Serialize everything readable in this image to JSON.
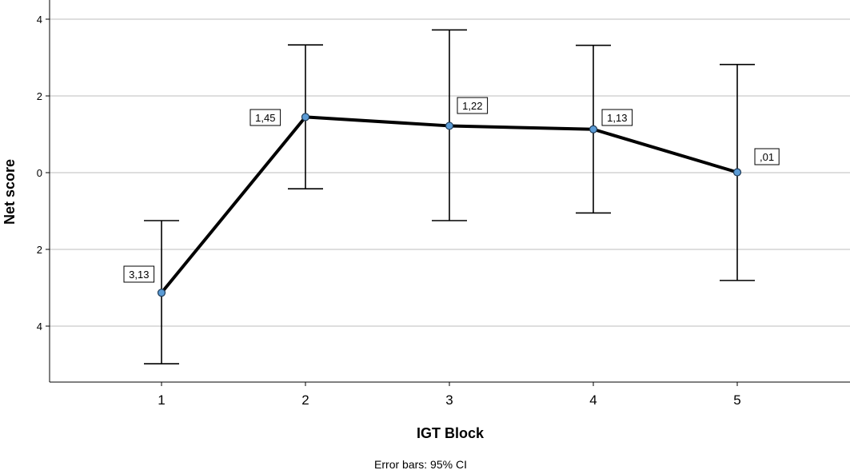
{
  "chart_data": {
    "type": "line",
    "xlabel": "IGT Block",
    "ylabel": "Net score",
    "footnote": "Error bars: 95% CI",
    "categories": [
      "1",
      "2",
      "3",
      "4",
      "5"
    ],
    "y_tick_values": [
      4,
      2,
      0,
      -2,
      -4
    ],
    "y_tick_labels": [
      "4",
      "2",
      "0",
      "2",
      "4"
    ],
    "ylim": [
      -5.4,
      4.4
    ],
    "grid": true,
    "values": [
      -3.13,
      1.45,
      1.22,
      1.13,
      0.01
    ],
    "data_labels": [
      "3,13",
      "1,45",
      "1,22",
      "1,13",
      ",01"
    ],
    "ci_upper": [
      -1.25,
      3.33,
      3.72,
      3.32,
      2.82
    ],
    "ci_lower": [
      -4.98,
      -0.42,
      -1.25,
      -1.05,
      -2.81
    ],
    "colors": {
      "line": "#000000",
      "marker": "#5b9bd5",
      "grid": "#bdbdbd"
    }
  }
}
